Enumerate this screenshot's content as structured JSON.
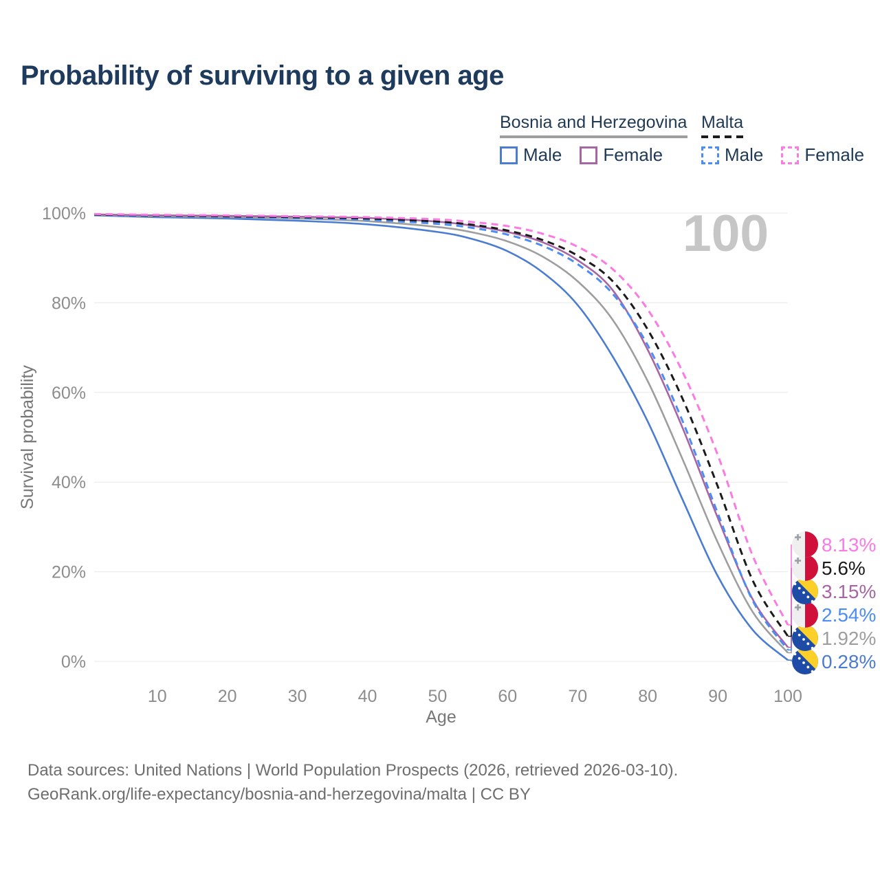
{
  "title": "Probability of surviving to a given age",
  "watermark": "100",
  "legend": {
    "groups": [
      {
        "title": "Bosnia and Herzegovina",
        "line_style": "solid",
        "line_color": "#9e9e9e",
        "items": [
          {
            "label": "Male",
            "color": "#4a7cd1",
            "dash": false
          },
          {
            "label": "Female",
            "color": "#a765a4",
            "dash": false
          }
        ]
      },
      {
        "title": "Malta",
        "line_style": "dashed",
        "line_color": "#1b1b1b",
        "items": [
          {
            "label": "Male",
            "color": "#4b8df2",
            "dash": true
          },
          {
            "label": "Female",
            "color": "#fb7ae3",
            "dash": true
          }
        ]
      }
    ]
  },
  "axes": {
    "x": {
      "label": "Age",
      "ticks": [
        10,
        20,
        30,
        40,
        50,
        60,
        70,
        80,
        90,
        100
      ],
      "range": [
        1,
        100
      ]
    },
    "y": {
      "label": "Survival probability",
      "ticks": [
        "0%",
        "20%",
        "40%",
        "60%",
        "80%",
        "100%"
      ],
      "tick_values": [
        0,
        20,
        40,
        60,
        80,
        100
      ],
      "range": [
        0,
        100
      ]
    }
  },
  "chart_data": {
    "type": "line",
    "title": "Probability of surviving to a given age",
    "xlabel": "Age",
    "ylabel": "Survival probability",
    "xlim": [
      1,
      100
    ],
    "ylim": [
      0,
      100
    ],
    "grid": "horizontal",
    "legend_position": "top-right",
    "x": [
      1,
      10,
      20,
      30,
      40,
      50,
      55,
      60,
      65,
      70,
      75,
      80,
      85,
      90,
      95,
      100
    ],
    "series": [
      {
        "name": "Bosnia and Herzegovina Male",
        "country": "Bosnia and Herzegovina",
        "sex": "Male",
        "style": "solid",
        "color": "#4a7cd1",
        "end_label": "0.28%",
        "values": [
          99.5,
          99.1,
          98.8,
          98.3,
          97.5,
          95.8,
          94.2,
          91.5,
          86.8,
          79.5,
          68.0,
          53.5,
          36.0,
          19.0,
          7.0,
          0.28
        ]
      },
      {
        "name": "Bosnia and Herzegovina Both sexes",
        "country": "Bosnia and Herzegovina",
        "sex": "Both",
        "style": "solid",
        "color": "#9e9e9e",
        "end_label": "1.92%",
        "values": [
          99.6,
          99.3,
          99.1,
          98.8,
          98.2,
          96.9,
          95.7,
          93.7,
          90.3,
          84.8,
          76.2,
          62.5,
          45.0,
          26.5,
          11.0,
          1.92
        ]
      },
      {
        "name": "Bosnia and Herzegovina Female",
        "country": "Bosnia and Herzegovina",
        "sex": "Female",
        "style": "solid",
        "color": "#a765a4",
        "end_label": "3.15%",
        "values": [
          99.7,
          99.5,
          99.4,
          99.2,
          98.9,
          98.1,
          97.2,
          95.8,
          93.5,
          89.5,
          82.8,
          69.5,
          52.0,
          32.0,
          13.8,
          3.15
        ]
      },
      {
        "name": "Malta Male",
        "country": "Malta",
        "sex": "Male",
        "style": "dashed",
        "color": "#4b8df2",
        "end_label": "2.54%",
        "values": [
          99.6,
          99.4,
          99.2,
          98.9,
          98.5,
          97.6,
          96.7,
          95.2,
          92.7,
          88.6,
          82.0,
          70.5,
          53.5,
          33.0,
          13.5,
          2.54
        ]
      },
      {
        "name": "Malta Both sexes",
        "country": "Malta",
        "sex": "Both",
        "style": "dashed",
        "color": "#1b1b1b",
        "end_label": "5.6%",
        "values": [
          99.7,
          99.5,
          99.3,
          99.1,
          98.8,
          98.1,
          97.4,
          96.1,
          94.0,
          90.5,
          84.8,
          74.0,
          58.5,
          39.0,
          18.0,
          5.6
        ]
      },
      {
        "name": "Malta Female",
        "country": "Malta",
        "sex": "Female",
        "style": "dashed",
        "color": "#fb7ae3",
        "end_label": "8.13%",
        "values": [
          99.8,
          99.6,
          99.5,
          99.3,
          99.1,
          98.6,
          98.0,
          97.1,
          95.4,
          92.5,
          87.5,
          78.5,
          64.5,
          46.0,
          23.5,
          8.13
        ]
      }
    ],
    "end_labels_top_to_bottom": [
      "8.13%",
      "5.6%",
      "3.15%",
      "2.54%",
      "1.92%",
      "0.28%"
    ]
  },
  "flags": {
    "malta": {
      "white": "#efefef",
      "red": "#d0103b",
      "cross": "#9aa0a6"
    },
    "bosnia": {
      "blue": "#1e4ba5",
      "yellow": "#fcd028",
      "stars": "#ffffff"
    }
  },
  "footer": {
    "line1": "Data sources: United Nations | World Population Prospects (2026, retrieved 2026-03-10).",
    "line2": "GeoRank.org/life-expectancy/bosnia-and-herzegovina/malta | CC BY"
  }
}
